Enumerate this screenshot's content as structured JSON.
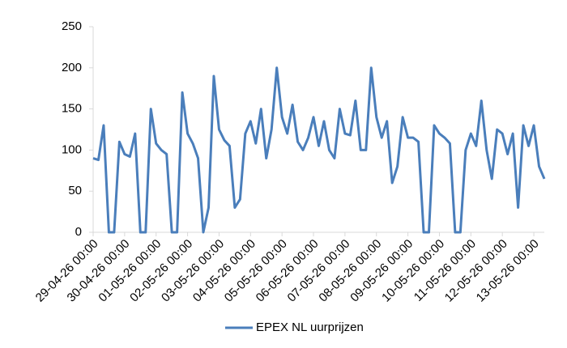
{
  "chart_data": {
    "type": "line",
    "categories": [
      "29-04-26 00:00",
      null,
      null,
      null,
      null,
      null,
      "30-04-26 00:00",
      null,
      null,
      null,
      null,
      null,
      "01-05-26 00:00",
      null,
      null,
      null,
      null,
      null,
      "02-05-26 00:00",
      null,
      null,
      null,
      null,
      null,
      "03-05-26 00:00",
      null,
      null,
      null,
      null,
      null,
      "04-05-26 00:00",
      null,
      null,
      null,
      null,
      null,
      "05-05-26 00:00",
      null,
      null,
      null,
      null,
      null,
      "06-05-26 00:00",
      null,
      null,
      null,
      null,
      null,
      "07-05-26 00:00",
      null,
      null,
      null,
      null,
      null,
      "08-05-26 00:00",
      null,
      null,
      null,
      null,
      null,
      "09-05-26 00:00",
      null,
      null,
      null,
      null,
      null,
      "10-05-26 00:00",
      null,
      null,
      null,
      null,
      null,
      "11-05-26 00:00",
      null,
      null,
      null,
      null,
      null,
      "12-05-26 00:00",
      null,
      null,
      null,
      null,
      null,
      "13-05-26 00:00",
      null,
      null
    ],
    "series": [
      {
        "name": "EPEX NL uurprijzen",
        "color": "#4a7ebb",
        "values": [
          90,
          88,
          130,
          0,
          0,
          110,
          95,
          92,
          120,
          0,
          0,
          150,
          108,
          100,
          95,
          0,
          0,
          170,
          120,
          108,
          90,
          0,
          30,
          190,
          125,
          112,
          105,
          30,
          40,
          120,
          135,
          108,
          150,
          90,
          125,
          200,
          140,
          120,
          155,
          110,
          100,
          115,
          140,
          105,
          135,
          100,
          90,
          150,
          120,
          118,
          160,
          100,
          100,
          200,
          140,
          115,
          135,
          60,
          80,
          140,
          115,
          115,
          110,
          0,
          0,
          130,
          120,
          115,
          108,
          0,
          0,
          100,
          120,
          105,
          160,
          100,
          65,
          125,
          120,
          95,
          120,
          30,
          130,
          105,
          130,
          80,
          65
        ]
      }
    ],
    "ylim": [
      0,
      250
    ],
    "yticks": [
      0,
      50,
      100,
      150,
      200,
      250
    ],
    "grid": false,
    "legend": "bottom"
  }
}
